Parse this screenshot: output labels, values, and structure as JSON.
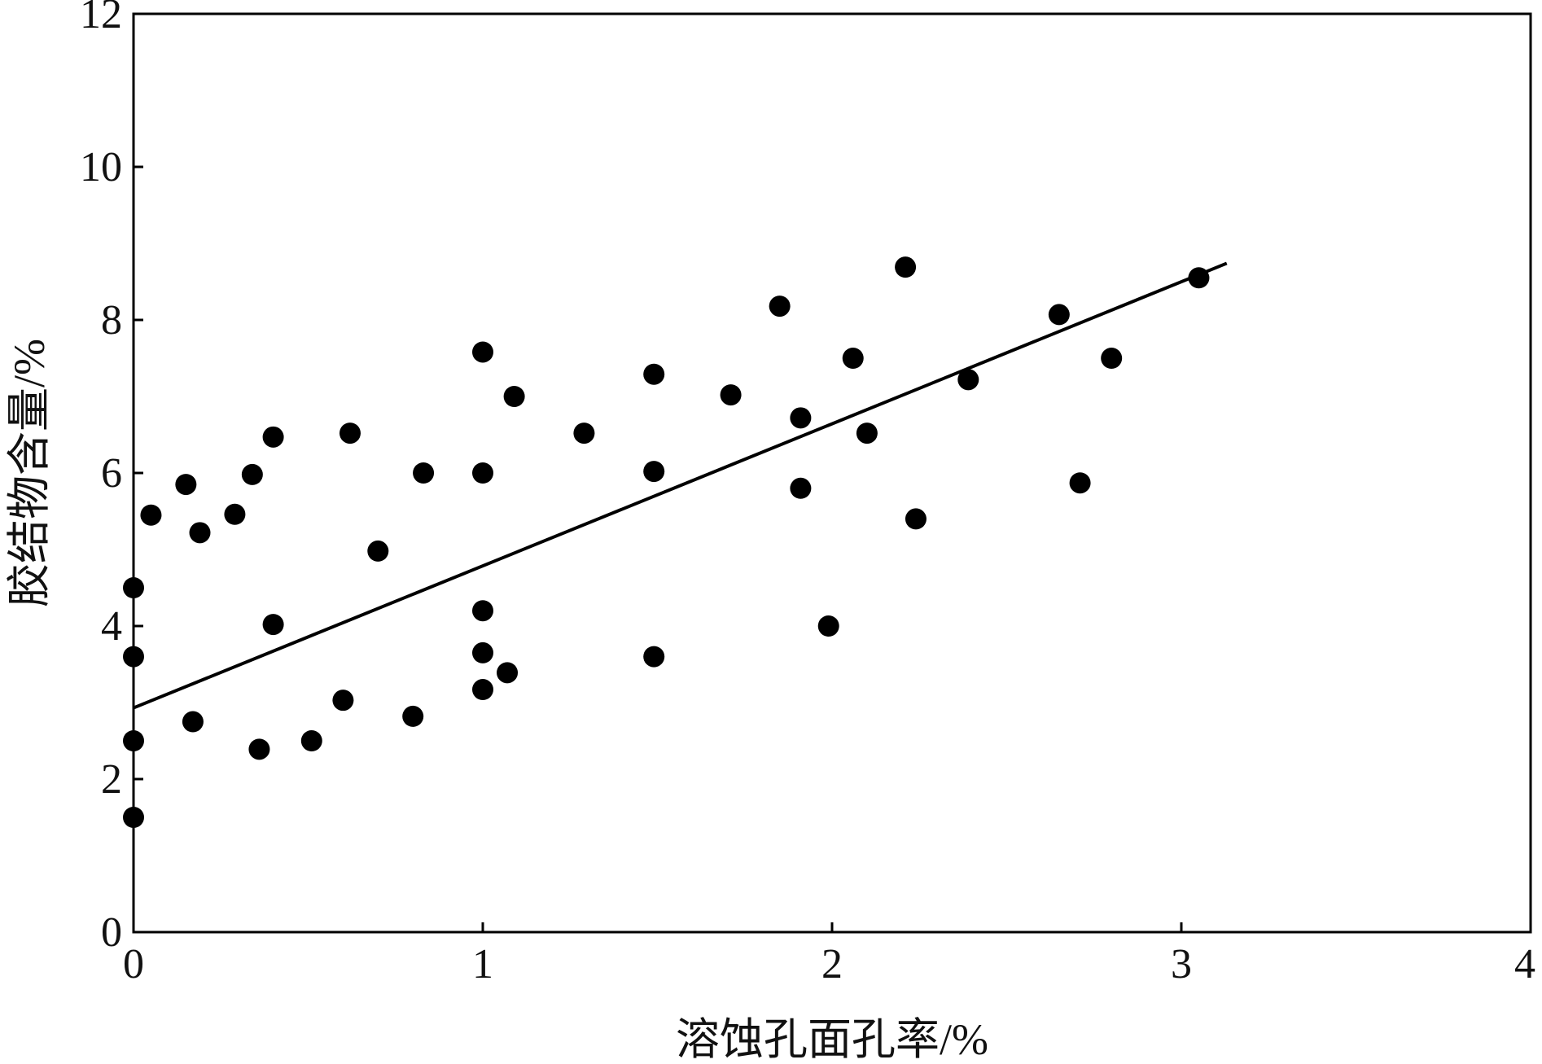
{
  "chart_data": {
    "type": "scatter",
    "title": "",
    "xlabel": "溶蚀孔面孔率/%",
    "ylabel": "胶结物含量/%",
    "xlim": [
      0,
      4
    ],
    "ylim": [
      0,
      12
    ],
    "xticks": [
      0,
      1,
      2,
      3,
      4
    ],
    "yticks": [
      0,
      2,
      4,
      6,
      8,
      10,
      12
    ],
    "grid": false,
    "legend": "none",
    "marker_color": "#000000",
    "line_color": "#000000",
    "series": [
      {
        "points": [
          [
            0.0,
            4.5
          ],
          [
            0.0,
            3.6
          ],
          [
            0.0,
            2.5
          ],
          [
            0.0,
            1.5
          ],
          [
            0.05,
            5.45
          ],
          [
            0.15,
            5.85
          ],
          [
            0.17,
            2.75
          ],
          [
            0.19,
            5.22
          ],
          [
            0.29,
            5.46
          ],
          [
            0.34,
            5.98
          ],
          [
            0.36,
            2.39
          ],
          [
            0.4,
            6.47
          ],
          [
            0.4,
            4.02
          ],
          [
            0.51,
            2.5
          ],
          [
            0.6,
            3.03
          ],
          [
            0.62,
            6.52
          ],
          [
            0.7,
            4.98
          ],
          [
            0.8,
            2.82
          ],
          [
            0.83,
            6.0
          ],
          [
            1.0,
            7.58
          ],
          [
            1.0,
            6.0
          ],
          [
            1.0,
            4.2
          ],
          [
            1.0,
            3.65
          ],
          [
            1.0,
            3.17
          ],
          [
            1.07,
            3.39
          ],
          [
            1.09,
            7.0
          ],
          [
            1.29,
            6.52
          ],
          [
            1.49,
            7.29
          ],
          [
            1.49,
            6.02
          ],
          [
            1.49,
            3.6
          ],
          [
            1.71,
            7.02
          ],
          [
            1.85,
            8.18
          ],
          [
            1.91,
            6.72
          ],
          [
            1.91,
            5.8
          ],
          [
            1.99,
            4.0
          ],
          [
            2.06,
            7.5
          ],
          [
            2.1,
            6.52
          ],
          [
            2.21,
            8.69
          ],
          [
            2.24,
            5.4
          ],
          [
            2.39,
            7.22
          ],
          [
            2.65,
            8.07
          ],
          [
            2.71,
            5.87
          ],
          [
            2.8,
            7.5
          ],
          [
            3.05,
            8.55
          ]
        ]
      }
    ],
    "fit_line": {
      "x": [
        0.0,
        3.13
      ],
      "y": [
        2.93,
        8.74
      ]
    }
  }
}
